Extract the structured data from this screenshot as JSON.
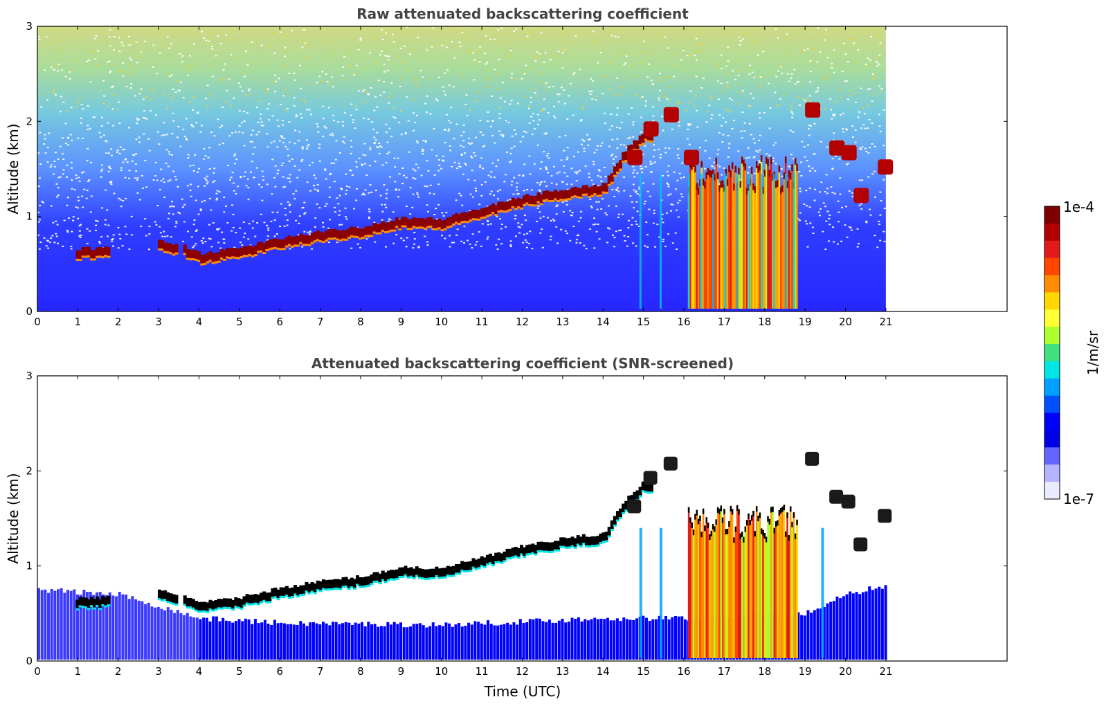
{
  "chart_data": [
    {
      "type": "heatmap",
      "title": "Raw attenuated backscattering coefficient",
      "xlabel": "",
      "ylabel": "Altitude (km)",
      "xlim": [
        0,
        24
      ],
      "ylim": [
        0,
        3
      ],
      "x_ticks": [
        "0",
        "1",
        "2",
        "3",
        "4",
        "5",
        "6",
        "7",
        "8",
        "9",
        "10",
        "11",
        "12",
        "13",
        "14",
        "15",
        "16",
        "17",
        "18",
        "19",
        "20",
        "21"
      ],
      "y_ticks": [
        "0",
        "1",
        "2",
        "3"
      ],
      "data_end_time": 21,
      "layer_base_km": [
        [
          1,
          0.57
        ],
        [
          1.7,
          0.58
        ],
        [
          3,
          0.65
        ],
        [
          3.6,
          0.6
        ],
        [
          4,
          0.52
        ],
        [
          5,
          0.58
        ],
        [
          6,
          0.68
        ],
        [
          7,
          0.75
        ],
        [
          8,
          0.8
        ],
        [
          9,
          0.9
        ],
        [
          10,
          0.88
        ],
        [
          10.5,
          0.95
        ],
        [
          11,
          1.0
        ],
        [
          12,
          1.12
        ],
        [
          13,
          1.2
        ],
        [
          14,
          1.25
        ],
        [
          14.5,
          1.6
        ],
        [
          15,
          1.8
        ]
      ],
      "convective_columns_utc": [
        14.9,
        15.4,
        16.1,
        16.4,
        16.7,
        17.0,
        17.3,
        17.6,
        17.9,
        18.2,
        18.5,
        18.7
      ],
      "convection_window_utc": [
        16.1,
        18.8
      ]
    },
    {
      "type": "heatmap",
      "title": "Attenuated backscattering coefficient (SNR-screened)",
      "xlabel": "Time (UTC)",
      "ylabel": "Altitude (km)",
      "xlim": [
        0,
        24
      ],
      "ylim": [
        0,
        3
      ],
      "x_ticks": [
        "0",
        "1",
        "2",
        "3",
        "4",
        "5",
        "6",
        "7",
        "8",
        "9",
        "10",
        "11",
        "12",
        "13",
        "14",
        "15",
        "16",
        "17",
        "18",
        "19",
        "20",
        "21"
      ],
      "y_ticks": [
        "0",
        "1",
        "2",
        "3"
      ],
      "data_end_time": 21,
      "boundary_layer_top_km": [
        [
          0,
          0.75
        ],
        [
          2,
          0.7
        ],
        [
          4,
          0.45
        ],
        [
          6,
          0.4
        ],
        [
          10,
          0.38
        ],
        [
          14,
          0.45
        ],
        [
          16,
          0.45
        ],
        [
          19,
          0.5
        ],
        [
          20,
          0.7
        ],
        [
          21,
          0.8
        ]
      ],
      "convection_window_utc": [
        16.1,
        18.8
      ]
    }
  ],
  "colorbar": {
    "label": "1/m/sr",
    "max_label": "1e-4",
    "min_label": "1e-7",
    "colors": [
      "#7f0000",
      "#b30000",
      "#e31a1c",
      "#ff4500",
      "#ff8c00",
      "#ffd700",
      "#ffff33",
      "#adff2f",
      "#40e080",
      "#00e5e5",
      "#00a0ff",
      "#0050ff",
      "#0000ff",
      "#0000e6",
      "#6464ff",
      "#b4b4ff",
      "#ebebff"
    ]
  }
}
